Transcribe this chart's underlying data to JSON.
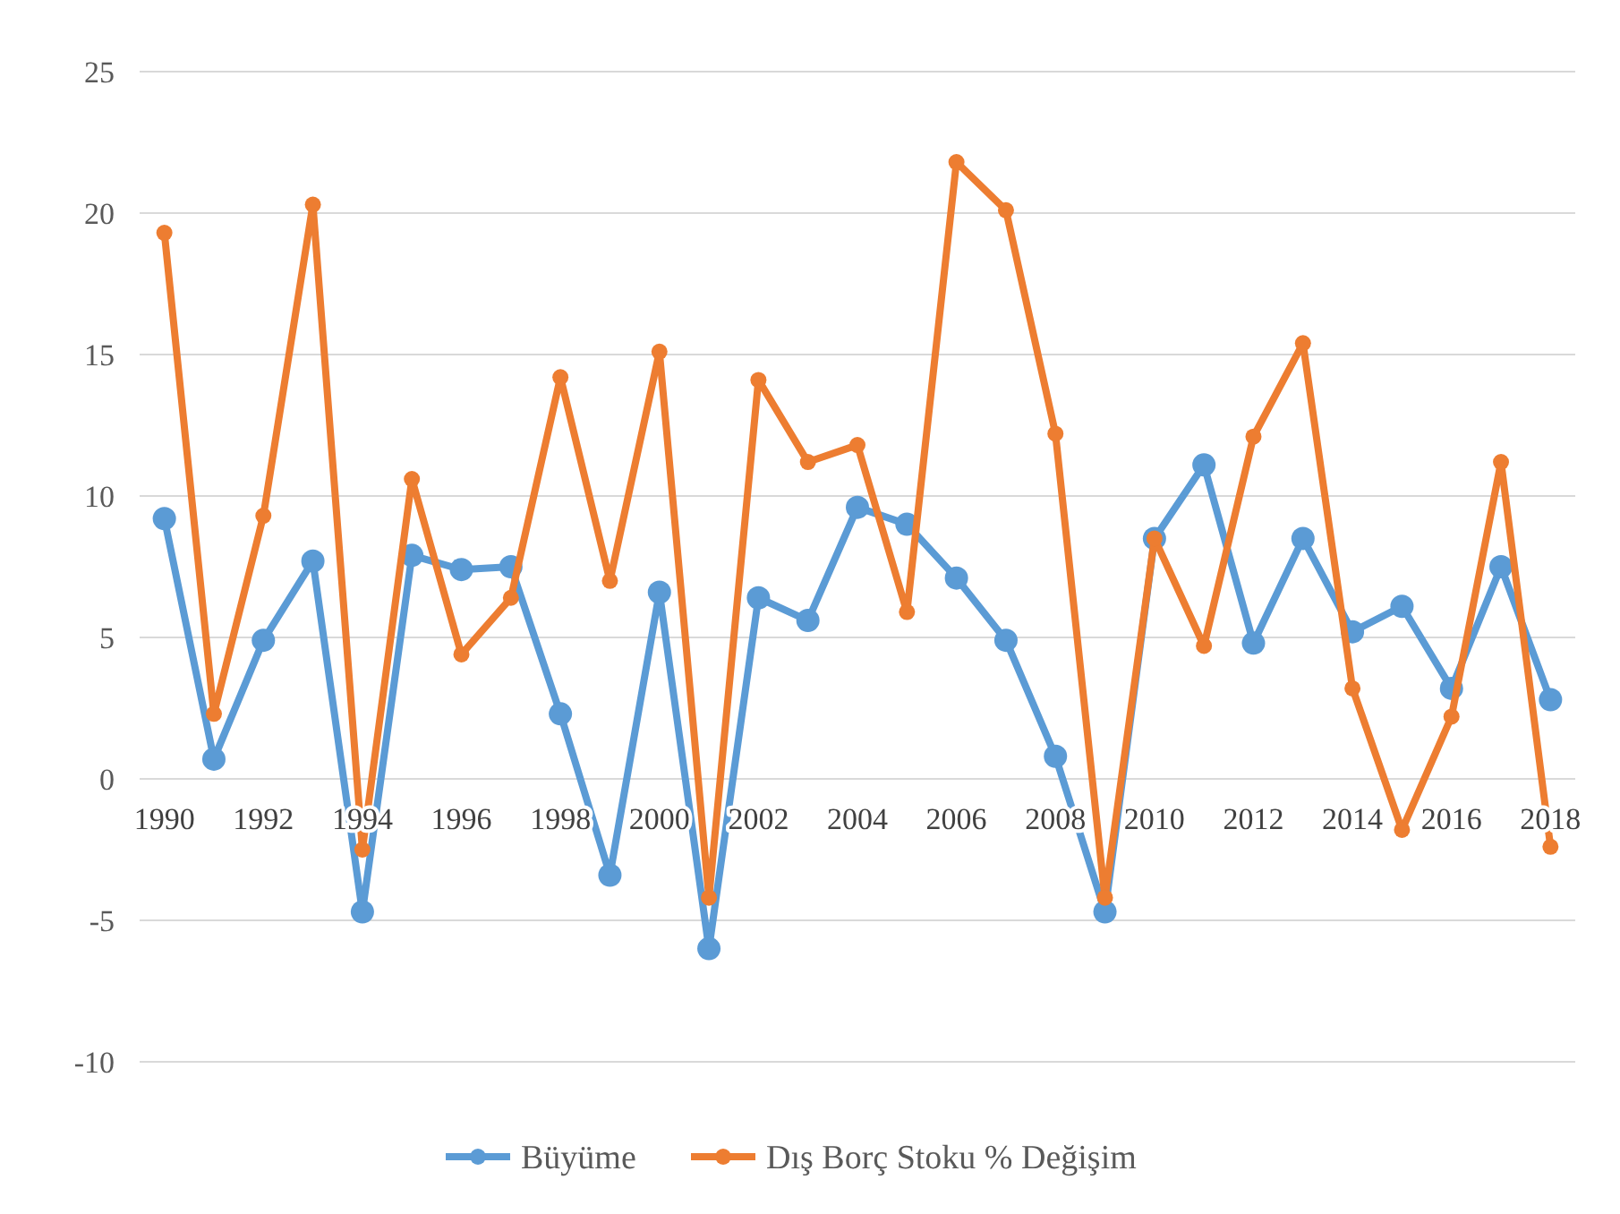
{
  "chart_data": {
    "type": "line",
    "categories": [
      "1990",
      null,
      "1992",
      null,
      "1994",
      null,
      "1996",
      null,
      "1998",
      null,
      "2000",
      null,
      "2002",
      null,
      "2004",
      null,
      "2006",
      null,
      "2008",
      null,
      "2010",
      null,
      "2012",
      null,
      "2014",
      null,
      "2016",
      null,
      "2018"
    ],
    "series": [
      {
        "name": "Büyüme",
        "color": "#5b9bd5",
        "values": [
          9.2,
          0.7,
          4.9,
          7.7,
          -4.7,
          7.9,
          7.4,
          7.5,
          2.3,
          -3.4,
          6.6,
          -6.0,
          6.4,
          5.6,
          9.6,
          9.0,
          7.1,
          4.9,
          0.8,
          -4.7,
          8.5,
          11.1,
          4.8,
          8.5,
          5.2,
          6.1,
          3.2,
          7.5,
          2.8
        ]
      },
      {
        "name": "Dış Borç Stoku % Değişim",
        "color": "#ed7d31",
        "values": [
          19.3,
          2.3,
          9.3,
          20.3,
          -2.5,
          10.6,
          4.4,
          6.4,
          14.2,
          7.0,
          15.1,
          -4.2,
          14.1,
          11.2,
          11.8,
          5.9,
          21.8,
          20.1,
          12.2,
          -4.2,
          8.5,
          4.7,
          12.1,
          15.4,
          3.2,
          -1.8,
          2.2,
          11.2,
          -2.4
        ]
      }
    ],
    "ylim": [
      -10,
      25
    ],
    "yticks": [
      -10,
      -5,
      0,
      5,
      10,
      15,
      20,
      25
    ],
    "grid": "y",
    "legend": "bottom",
    "marker": "circle",
    "line_style": "solid"
  }
}
